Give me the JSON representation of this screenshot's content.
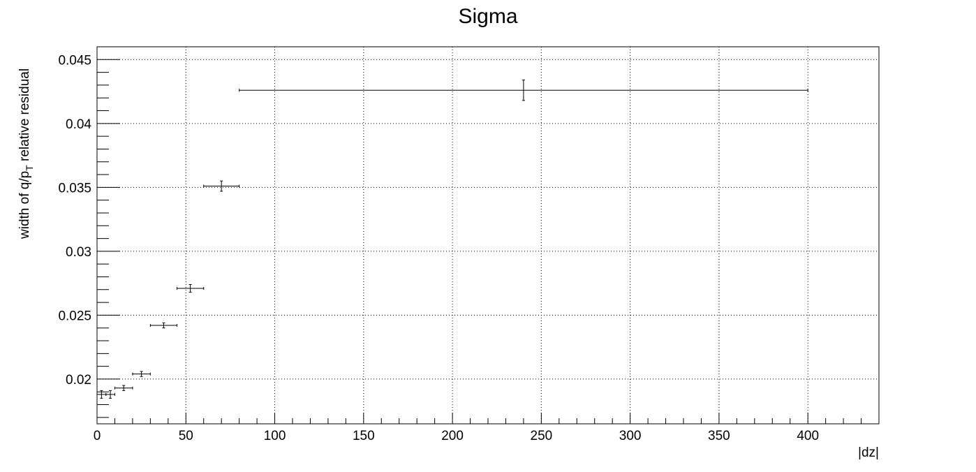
{
  "chart_data": {
    "type": "scatter",
    "title": "Sigma",
    "xlabel": "|dz|",
    "ylabel": {
      "prefix": "width of q/p",
      "subscript": "T",
      "suffix": " relative residual"
    },
    "xlim": [
      0,
      440
    ],
    "ylim": [
      0.0165,
      0.046
    ],
    "xticks": [
      0,
      50,
      100,
      150,
      200,
      250,
      300,
      350,
      400
    ],
    "xtick_labels": [
      "0",
      "50",
      "100",
      "150",
      "200",
      "250",
      "300",
      "350",
      "400"
    ],
    "yticks": [
      0.02,
      0.025,
      0.03,
      0.035,
      0.04,
      0.045
    ],
    "ytick_labels": [
      "0.02",
      "0.025",
      "0.03",
      "0.035",
      "0.04",
      "0.045"
    ],
    "grid": true,
    "series": [
      {
        "points": [
          {
            "x": 2.5,
            "xlow": 0,
            "xhigh": 5,
            "y": 0.0188,
            "yerr": 0.0003
          },
          {
            "x": 7.5,
            "xlow": 5,
            "xhigh": 10,
            "y": 0.0188,
            "yerr": 0.0003
          },
          {
            "x": 15,
            "xlow": 10,
            "xhigh": 20,
            "y": 0.0193,
            "yerr": 0.0002
          },
          {
            "x": 25,
            "xlow": 20,
            "xhigh": 30,
            "y": 0.0204,
            "yerr": 0.0002
          },
          {
            "x": 37.5,
            "xlow": 30,
            "xhigh": 45,
            "y": 0.0242,
            "yerr": 0.0002
          },
          {
            "x": 52.5,
            "xlow": 45,
            "xhigh": 60,
            "y": 0.0271,
            "yerr": 0.0003
          },
          {
            "x": 70,
            "xlow": 60,
            "xhigh": 80,
            "y": 0.0351,
            "yerr": 0.0004
          },
          {
            "x": 240,
            "xlow": 80,
            "xhigh": 400,
            "y": 0.0426,
            "yerr": 0.0008
          }
        ]
      }
    ]
  }
}
